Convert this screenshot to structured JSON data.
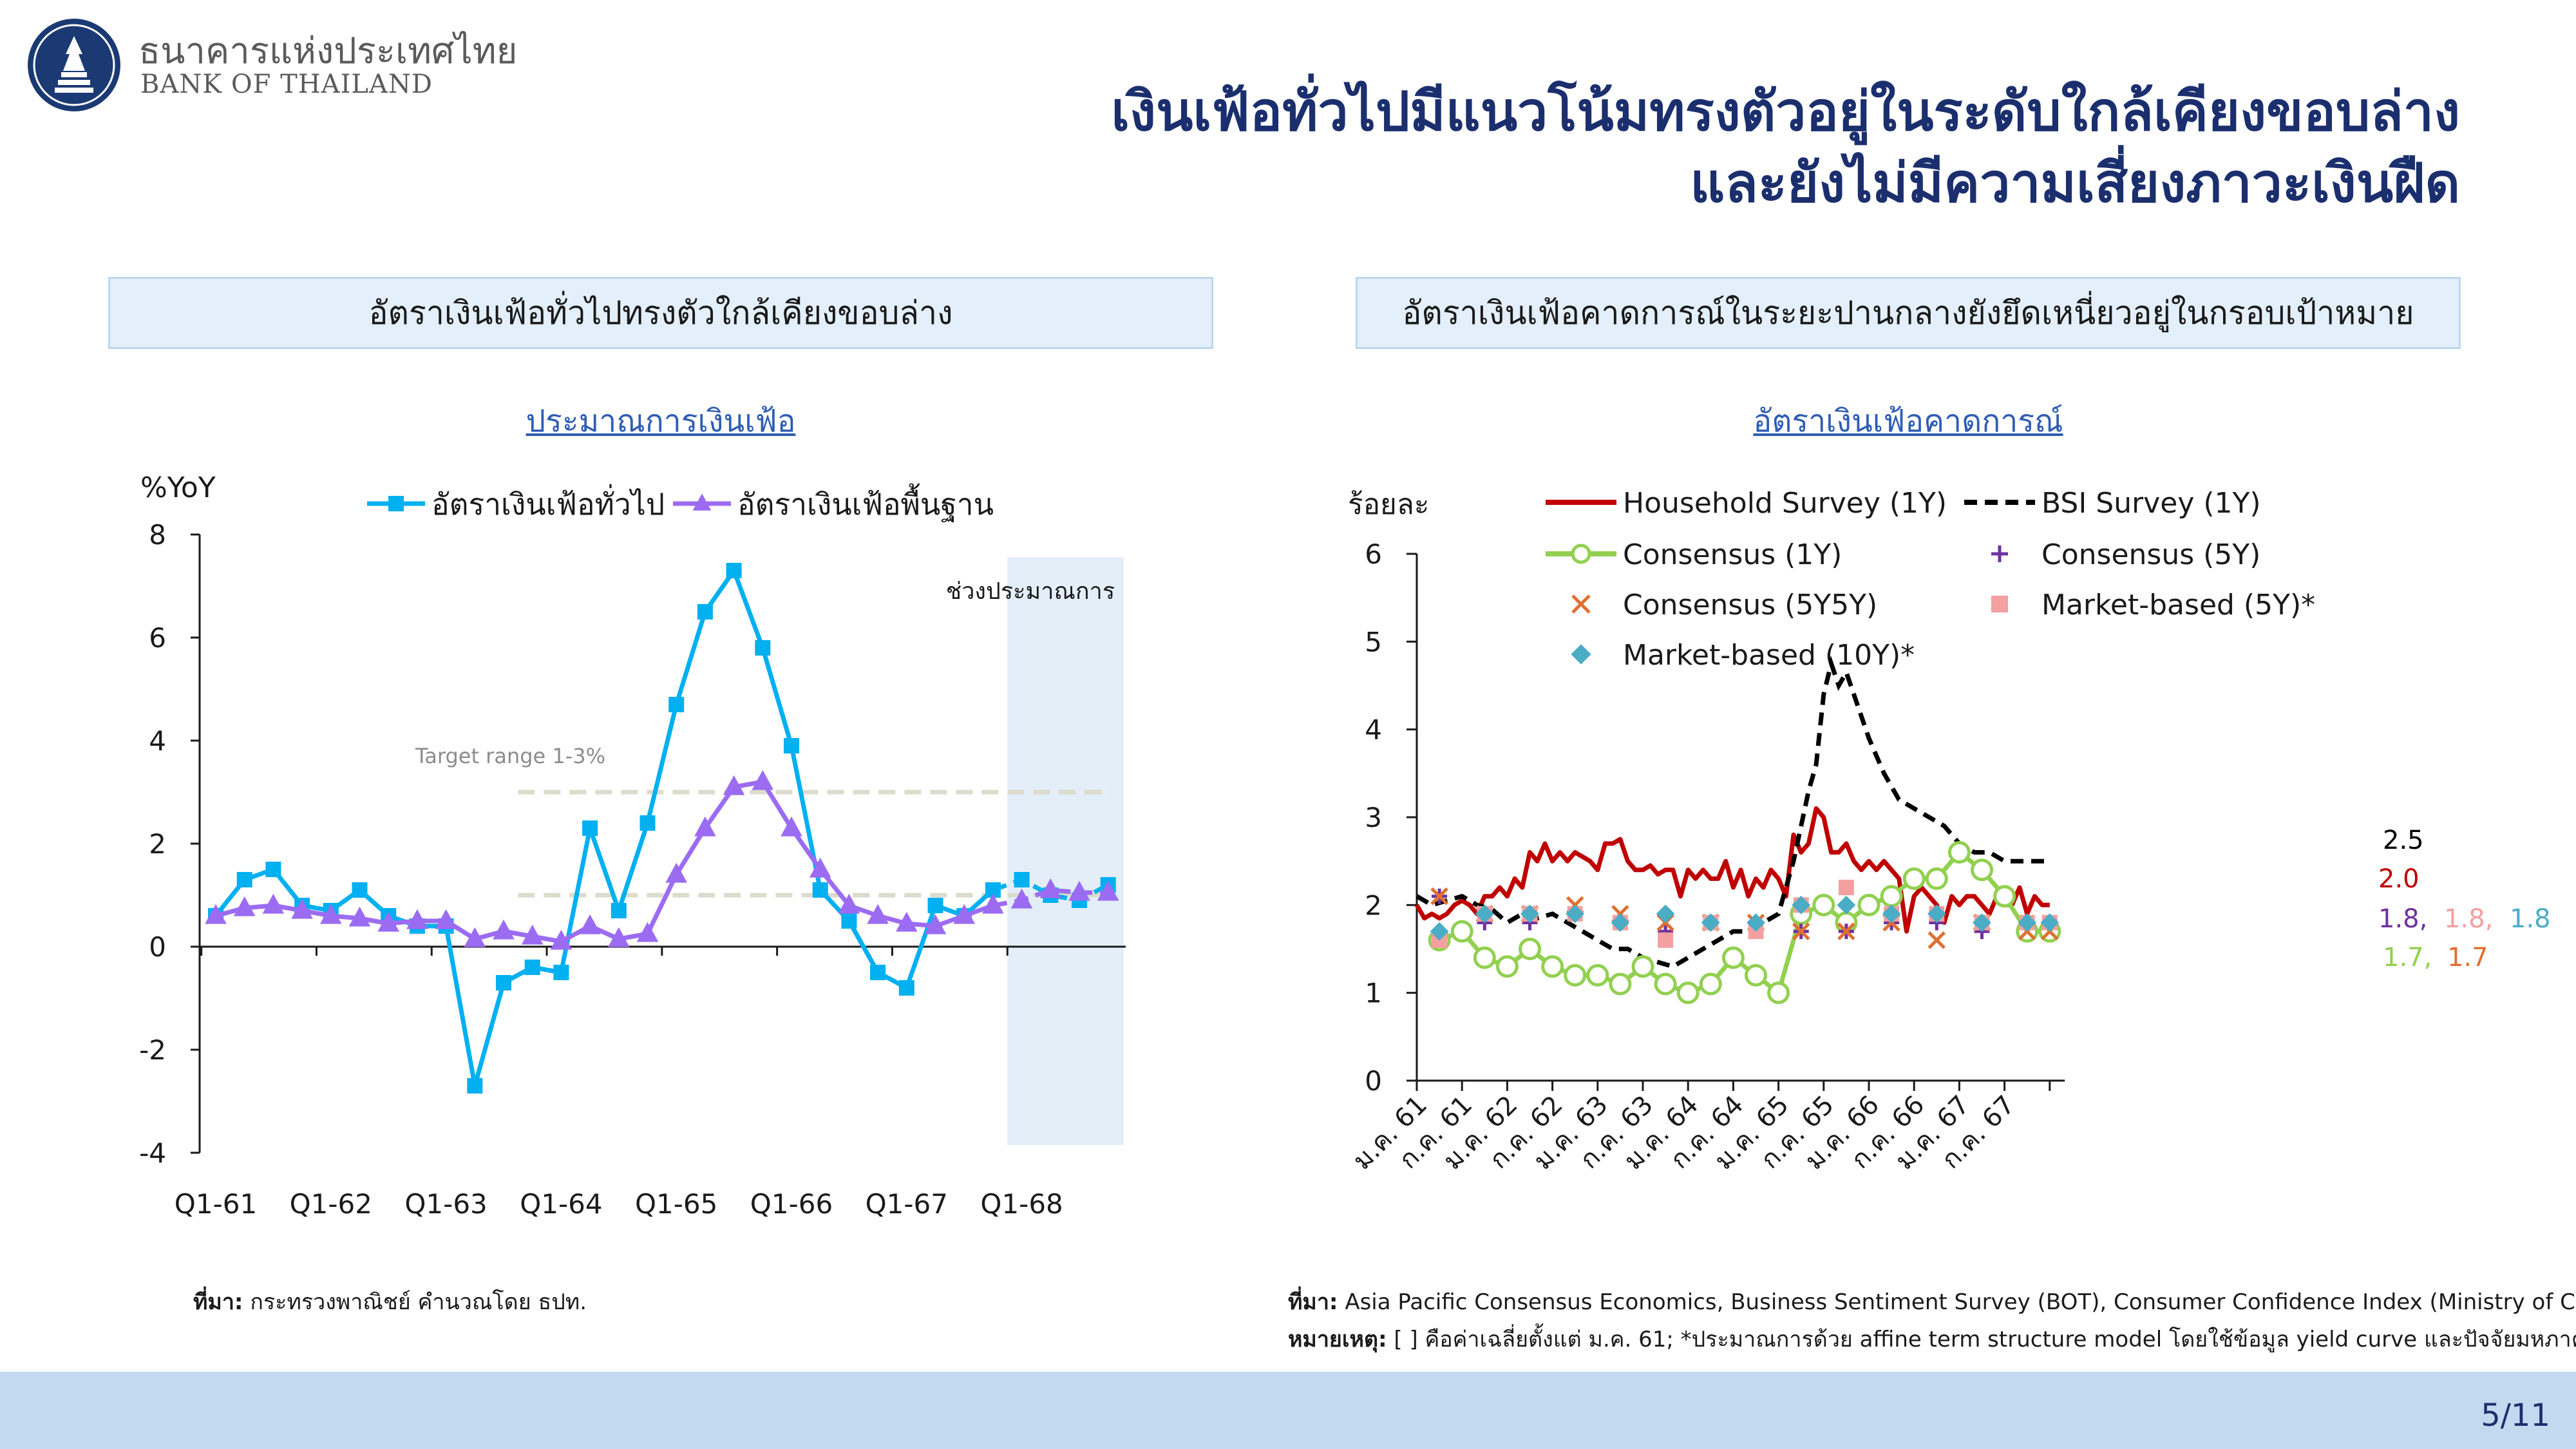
{
  "header": {
    "bank_name_th": "ธนาคารแห่งประเทศไทย",
    "bank_name_en": "BANK OF THAILAND",
    "title_line1": "เงินเฟ้อทั่วไปมีแนวโน้มทรงตัวอยู่ในระดับใกล้เคียงขอบล่าง",
    "title_line2": "และยังไม่มีความเสี่ยงภาวะเงินฝืด"
  },
  "left_panel": {
    "heading": "อัตราเงินเฟ้อทั่วไปทรงตัวใกล้เคียงขอบล่าง",
    "subtitle": "ประมาณการเงินเฟ้อ",
    "source_label": "ที่มา:",
    "source_text": "กระทรวงพาณิชย์ คำนวณโดย ธปท."
  },
  "right_panel": {
    "heading": "อัตราเงินเฟ้อคาดการณ์ในระยะปานกลางยังยึดเหนี่ยวอยู่ในกรอบเป้าหมาย",
    "subtitle": "อัตราเงินเฟ้อคาดการณ์",
    "source_label": "ที่มา:",
    "source_text": "Asia Pacific Consensus Economics, Business Sentiment Survey (BOT), Consumer Confidence Index (Ministry of Commerce)",
    "note_label": "หมายเหตุ:",
    "note_text": "[ ] คือค่าเฉลี่ยตั้งแต่ ม.ค. 61; *ประมาณการด้วย affine term structure model โดยใช้ข้อมูล yield curve และปัจจัยมหภาค"
  },
  "footer": {
    "page": "5/11"
  },
  "colors": {
    "navy": "#1b2f6e",
    "headline": "#00b0f0",
    "core": "#9b6cf2",
    "band": "#dddccc",
    "forecast_bg": "#e3eef9"
  },
  "chart_data": [
    {
      "type": "line",
      "title": "ประมาณการเงินเฟ้อ",
      "ylabel": "%YoY",
      "ylim": [
        -4,
        8
      ],
      "yticks": [
        -4,
        -2,
        0,
        2,
        4,
        6,
        8
      ],
      "x_tick_labels": [
        "Q1-61",
        "Q1-62",
        "Q1-63",
        "Q1-64",
        "Q1-65",
        "Q1-66",
        "Q1-67",
        "Q1-68"
      ],
      "x_tick_index": [
        0,
        4,
        8,
        12,
        16,
        20,
        24,
        28
      ],
      "n_points": 32,
      "forecast_label": "ช่วงประมาณการ",
      "forecast_start_index": 27.5,
      "target_label": "Target range 1-3%",
      "target_band": [
        1,
        3
      ],
      "target_start_index": 10.5,
      "series": [
        {
          "name": "อัตราเงินเฟ้อทั่วไป",
          "color": "#00b0f0",
          "marker": "square",
          "values": [
            0.6,
            1.3,
            1.5,
            0.8,
            0.7,
            1.1,
            0.6,
            0.4,
            0.4,
            -2.7,
            -0.7,
            -0.4,
            -0.5,
            2.3,
            0.7,
            2.4,
            4.7,
            6.5,
            7.3,
            5.8,
            3.9,
            1.1,
            0.5,
            -0.5,
            -0.8,
            0.8,
            0.6,
            1.1,
            1.3,
            1.0,
            0.9,
            1.2
          ],
          "forecast_from": 27
        },
        {
          "name": "อัตราเงินเฟ้อพื้นฐาน",
          "color": "#9b6cf2",
          "marker": "triangle",
          "values": [
            0.6,
            0.75,
            0.8,
            0.7,
            0.6,
            0.55,
            0.45,
            0.5,
            0.5,
            0.15,
            0.3,
            0.2,
            0.1,
            0.4,
            0.15,
            0.25,
            1.4,
            2.3,
            3.1,
            3.2,
            2.3,
            1.5,
            0.8,
            0.6,
            0.45,
            0.4,
            0.6,
            0.8,
            0.9,
            1.1,
            1.05,
            1.05
          ],
          "forecast_from": 27
        }
      ]
    },
    {
      "type": "line",
      "title": "อัตราเงินเฟ้อคาดการณ์",
      "ylabel": "ร้อยละ",
      "ylim": [
        0,
        6
      ],
      "yticks": [
        0,
        1,
        2,
        3,
        4,
        5,
        6
      ],
      "x_tick_labels": [
        "ม.ค. 61",
        "ก.ค. 61",
        "ม.ค. 62",
        "ก.ค. 62",
        "ม.ค. 63",
        "ก.ค. 63",
        "ม.ค. 64",
        "ก.ค. 64",
        "ม.ค. 65",
        "ก.ค. 65",
        "ม.ค. 66",
        "ก.ค. 66",
        "ม.ค. 67",
        "ก.ค. 67"
      ],
      "x_tick_month": [
        0,
        6,
        12,
        18,
        24,
        30,
        36,
        42,
        48,
        54,
        60,
        66,
        72,
        78
      ],
      "x_max_month": 86,
      "end_labels": [
        {
          "text": "2.5",
          "color": "#000000"
        },
        {
          "text": "2.0",
          "color": "#c00000"
        },
        {
          "text": "1.8,",
          "color": "#7030a0"
        },
        {
          "text": "1.8,",
          "color": "#f4a0a0"
        },
        {
          "text": "1.8",
          "color": "#4bacc6"
        },
        {
          "text": "1.7,",
          "color": "#92d050"
        },
        {
          "text": "1.7",
          "color": "#e07030"
        }
      ],
      "series": [
        {
          "name": "Household Survey (1Y)",
          "color": "#c00000",
          "style": "solid",
          "months": [
            0,
            1,
            2,
            3,
            4,
            5,
            6,
            7,
            8,
            9,
            10,
            11,
            12,
            13,
            14,
            15,
            16,
            17,
            18,
            19,
            20,
            21,
            22,
            23,
            24,
            25,
            26,
            27,
            28,
            29,
            30,
            31,
            32,
            33,
            34,
            35,
            36,
            37,
            38,
            39,
            40,
            41,
            42,
            43,
            44,
            45,
            46,
            47,
            48,
            49,
            50,
            51,
            52,
            53,
            54,
            55,
            56,
            57,
            58,
            59,
            60,
            61,
            62,
            63,
            64,
            65,
            66,
            67,
            68,
            69,
            70,
            71,
            72,
            73,
            74,
            75,
            76,
            77,
            78,
            79,
            80,
            81,
            82,
            83,
            84
          ],
          "values": [
            2.0,
            1.85,
            1.9,
            1.85,
            1.9,
            2.0,
            2.05,
            2.0,
            1.9,
            2.1,
            2.1,
            2.2,
            2.1,
            2.3,
            2.2,
            2.6,
            2.5,
            2.7,
            2.5,
            2.6,
            2.5,
            2.6,
            2.55,
            2.5,
            2.4,
            2.7,
            2.7,
            2.75,
            2.5,
            2.4,
            2.4,
            2.45,
            2.35,
            2.4,
            2.4,
            2.1,
            2.4,
            2.3,
            2.4,
            2.3,
            2.3,
            2.5,
            2.2,
            2.4,
            2.1,
            2.3,
            2.2,
            2.4,
            2.3,
            2.1,
            2.8,
            2.6,
            2.7,
            3.1,
            3.0,
            2.6,
            2.6,
            2.7,
            2.5,
            2.4,
            2.5,
            2.4,
            2.5,
            2.4,
            2.3,
            1.7,
            2.1,
            2.2,
            2.1,
            2.0,
            1.8,
            2.1,
            2.0,
            2.1,
            2.1,
            2.0,
            1.9,
            2.1,
            2.0,
            2.0,
            2.2,
            1.9,
            2.1,
            2.0,
            2.0
          ]
        },
        {
          "name": "BSI Survey (1Y)",
          "color": "#000000",
          "style": "dashed",
          "months": [
            0,
            2,
            4,
            6,
            8,
            10,
            12,
            14,
            16,
            18,
            20,
            22,
            24,
            26,
            28,
            30,
            32,
            34,
            36,
            38,
            40,
            42,
            44,
            46,
            48,
            50,
            52,
            53,
            54,
            55,
            56,
            57,
            58,
            60,
            62,
            64,
            66,
            68,
            70,
            72,
            74,
            76,
            78,
            80,
            82,
            84
          ],
          "values": [
            2.1,
            2.0,
            2.05,
            2.1,
            2.0,
            1.95,
            1.8,
            1.9,
            1.85,
            1.9,
            1.8,
            1.7,
            1.6,
            1.5,
            1.5,
            1.4,
            1.35,
            1.3,
            1.4,
            1.5,
            1.6,
            1.7,
            1.7,
            1.8,
            1.9,
            2.5,
            3.3,
            3.6,
            4.4,
            4.75,
            4.5,
            4.65,
            4.4,
            3.9,
            3.5,
            3.2,
            3.1,
            3.0,
            2.9,
            2.7,
            2.6,
            2.6,
            2.5,
            2.5,
            2.5,
            2.5
          ]
        },
        {
          "name": "Consensus (1Y)",
          "color": "#92d050",
          "style": "solid",
          "marker": "circle",
          "months": [
            3,
            6,
            9,
            12,
            15,
            18,
            21,
            24,
            27,
            30,
            33,
            36,
            39,
            42,
            45,
            48,
            51,
            54,
            57,
            60,
            63,
            66,
            69,
            72,
            75,
            78,
            81,
            84
          ],
          "values": [
            1.6,
            1.7,
            1.4,
            1.3,
            1.5,
            1.3,
            1.2,
            1.2,
            1.1,
            1.3,
            1.1,
            1.0,
            1.1,
            1.4,
            1.2,
            1.0,
            1.9,
            2.0,
            1.8,
            2.0,
            2.1,
            2.3,
            2.3,
            2.6,
            2.4,
            2.1,
            1.7,
            1.7
          ]
        },
        {
          "name": "Consensus (5Y)",
          "color": "#7030a0",
          "style": "marker",
          "marker": "plus",
          "months": [
            3,
            9,
            15,
            21,
            27,
            33,
            39,
            45,
            51,
            57,
            63,
            69,
            75,
            81,
            84
          ],
          "values": [
            2.1,
            1.8,
            1.8,
            1.9,
            1.8,
            1.7,
            1.8,
            1.8,
            1.7,
            1.7,
            1.8,
            1.8,
            1.7,
            1.8,
            1.8
          ]
        },
        {
          "name": "Consensus (5Y5Y)",
          "color": "#e07030",
          "style": "marker",
          "marker": "x",
          "months": [
            3,
            9,
            15,
            21,
            27,
            33,
            39,
            45,
            51,
            57,
            63,
            69,
            75,
            81,
            84
          ],
          "values": [
            2.1,
            1.9,
            1.9,
            2.0,
            1.9,
            1.8,
            1.8,
            1.8,
            1.7,
            1.7,
            1.8,
            1.6,
            1.8,
            1.7,
            1.7
          ]
        },
        {
          "name": "Market-based (5Y)*",
          "color": "#f4a0a0",
          "style": "marker",
          "marker": "square",
          "months": [
            3,
            9,
            15,
            21,
            27,
            33,
            39,
            45,
            51,
            57,
            63,
            69,
            75,
            81,
            84
          ],
          "values": [
            1.6,
            1.9,
            1.9,
            1.9,
            1.8,
            1.6,
            1.8,
            1.7,
            2.0,
            2.2,
            1.9,
            1.9,
            1.8,
            1.8,
            1.8
          ]
        },
        {
          "name": "Market-based (10Y)*",
          "color": "#4bacc6",
          "style": "marker",
          "marker": "diamond",
          "months": [
            3,
            9,
            15,
            21,
            27,
            33,
            39,
            45,
            51,
            57,
            63,
            69,
            75,
            81,
            84
          ],
          "values": [
            1.7,
            1.9,
            1.9,
            1.9,
            1.8,
            1.9,
            1.8,
            1.8,
            2.0,
            2.0,
            1.9,
            1.9,
            1.8,
            1.8,
            1.8
          ]
        }
      ]
    }
  ]
}
